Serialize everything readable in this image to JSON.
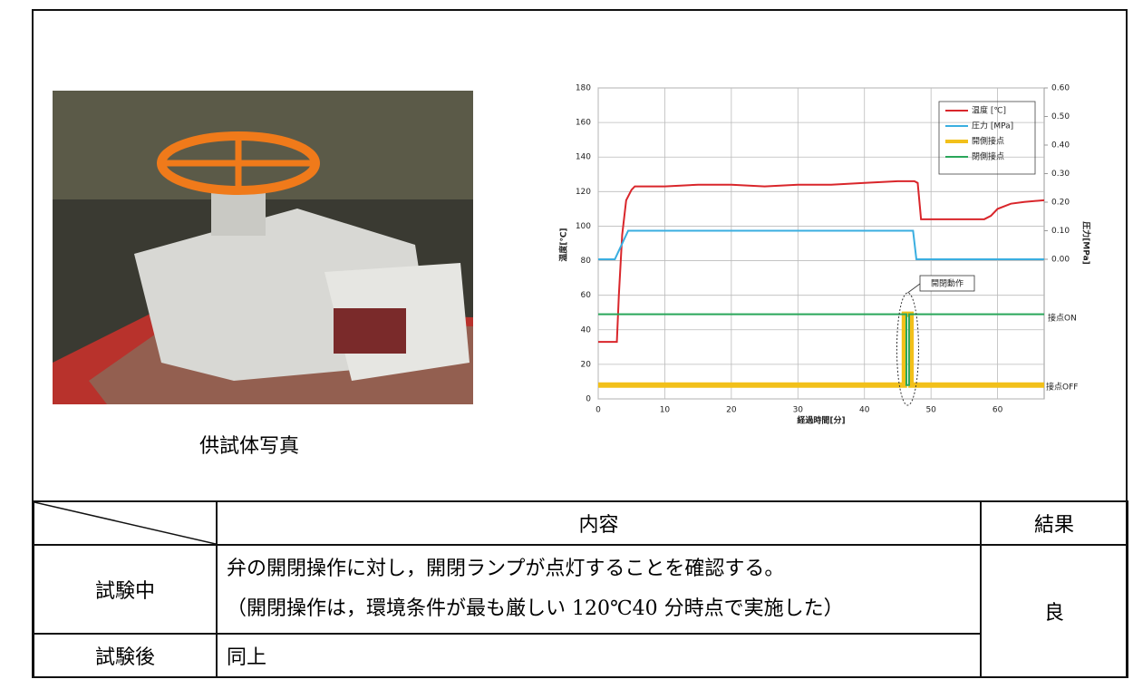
{
  "photo": {
    "caption": "供試体写真"
  },
  "chart_data": {
    "type": "line",
    "xlabel": "経過時間[分]",
    "ylabel": "温度[℃]",
    "y2label": "圧力[MPa]",
    "xlim": [
      0,
      67
    ],
    "xticks": [
      0,
      10,
      20,
      30,
      40,
      50,
      60
    ],
    "ylim": [
      0,
      180
    ],
    "yticks": [
      0,
      20,
      40,
      60,
      80,
      100,
      120,
      140,
      160,
      180
    ],
    "y2lim": [
      -0.489,
      0.6
    ],
    "y2ticks": [
      {
        "value": 0,
        "label": "0.00"
      },
      {
        "value": 0.1,
        "label": "0.10"
      },
      {
        "value": 0.2,
        "label": "0.20"
      },
      {
        "value": 0.3,
        "label": "0.30"
      },
      {
        "value": 0.4,
        "label": "0.40"
      },
      {
        "value": 0.5,
        "label": "0.50"
      },
      {
        "value": 0.6,
        "label": "0.60"
      }
    ],
    "grid": true,
    "legend": "upper right",
    "annotations": {
      "action": "開閉動作",
      "on": "接点ON",
      "off": "接点OFF"
    },
    "series": [
      {
        "name": "温度 [℃]",
        "color": "#d9262b",
        "x": [
          0,
          2.8,
          3.1,
          3.6,
          4.2,
          5,
          5.5,
          6,
          10,
          15,
          20,
          25,
          30,
          35,
          40,
          45,
          47.5,
          48,
          48.5,
          55,
          58,
          59,
          60,
          62,
          64,
          67
        ],
        "values": [
          33,
          33,
          60,
          95,
          115,
          121,
          123,
          123,
          123,
          124,
          124,
          123,
          124,
          124,
          125,
          126,
          126,
          125,
          104,
          104,
          104,
          106,
          110,
          113,
          114,
          115
        ]
      },
      {
        "name": "圧力 [MPa]",
        "color": "#3aaee0",
        "axis": "y2",
        "x": [
          0,
          2.5,
          3.5,
          4.5,
          5,
          10,
          15,
          20,
          25,
          30,
          35,
          40,
          45,
          47.3,
          47.8,
          55,
          67
        ],
        "values": [
          0,
          0,
          0.05,
          0.1,
          0.1,
          0.1,
          0.1,
          0.1,
          0.1,
          0.1,
          0.1,
          0.1,
          0.1,
          0.1,
          0,
          0,
          0
        ]
      },
      {
        "name": "開側接点",
        "color": "#f2c01a",
        "x": [
          0,
          46,
          46,
          47,
          47,
          67
        ],
        "values": [
          8,
          8,
          49,
          49,
          8,
          8
        ]
      },
      {
        "name": "閉側接点",
        "color": "#2aa65a",
        "x": [
          0,
          46.3,
          46.3,
          46.7,
          46.7,
          67
        ],
        "values": [
          49,
          49,
          8,
          8,
          49,
          49
        ]
      }
    ]
  },
  "table": {
    "header": [
      "内容",
      "結果"
    ],
    "rows": [
      {
        "label": "試験中",
        "content": [
          "弁の開閉操作に対し，開閉ランプが点灯することを確認する。",
          "（開閉操作は，環境条件が最も厳しい 120℃40 分時点で実施した）"
        ]
      },
      {
        "label": "試験後",
        "content": [
          "同上"
        ]
      }
    ],
    "result": "良"
  }
}
